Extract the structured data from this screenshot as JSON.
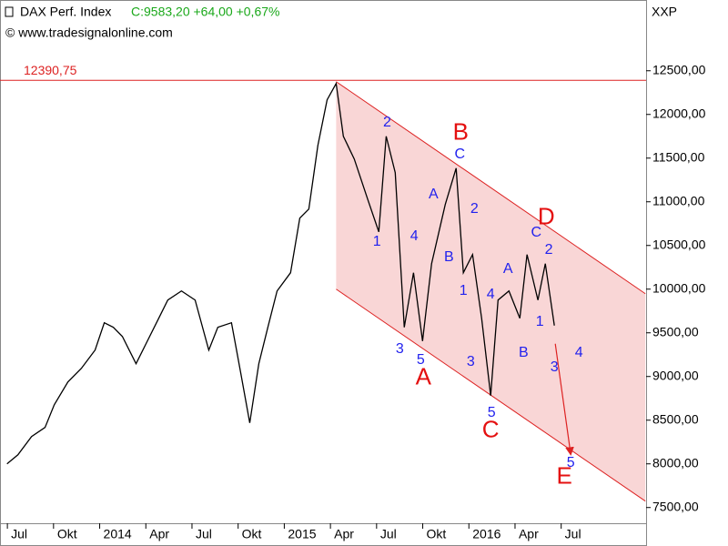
{
  "chart_data": {
    "type": "line",
    "title": "DAX Perf. Index",
    "quote": "C:9583,20 +64,00 +0,67%",
    "source": "© www.tradesignalonline.com",
    "y_axis_label": "XXP",
    "xlim": [
      2013.46,
      2016.96
    ],
    "ylim": [
      7320,
      13310
    ],
    "xticks": [
      {
        "value": 2013.5,
        "label": "Jul"
      },
      {
        "value": 2013.75,
        "label": "Okt"
      },
      2014,
      {
        "value": 2014.25,
        "label": "Apr"
      },
      {
        "value": 2014.5,
        "label": "Jul"
      },
      {
        "value": 2014.75,
        "label": "Okt"
      },
      2015,
      {
        "value": 2015.25,
        "label": "Apr"
      },
      {
        "value": 2015.5,
        "label": "Jul"
      },
      {
        "value": 2015.75,
        "label": "Okt"
      },
      2016,
      {
        "value": 2016.25,
        "label": "Apr"
      },
      {
        "value": 2016.5,
        "label": "Jul"
      }
    ],
    "yticks": [
      {
        "value": 7500,
        "label": "7500,00"
      },
      {
        "value": 8000,
        "label": "8000,00"
      },
      {
        "value": 8500,
        "label": "8500,00"
      },
      {
        "value": 9000,
        "label": "9000,00"
      },
      {
        "value": 9500,
        "label": "9500,00"
      },
      {
        "value": 10000,
        "label": "10000,00"
      },
      {
        "value": 10500,
        "label": "10500,00"
      },
      {
        "value": 11000,
        "label": "11000,00"
      },
      {
        "value": 11500,
        "label": "11500,00"
      },
      {
        "value": 12000,
        "label": "12000,00"
      },
      {
        "value": 12500,
        "label": "12500,00"
      }
    ],
    "series": [
      {
        "name": "DAX Perf. Index",
        "color": "#000000",
        "x": [
          2013.498,
          2013.557,
          2013.631,
          2013.704,
          2013.754,
          2013.828,
          2013.901,
          2013.975,
          2014.025,
          2014.074,
          2014.123,
          2014.197,
          2014.246,
          2014.32,
          2014.369,
          2014.443,
          2014.517,
          2014.591,
          2014.64,
          2014.714,
          2014.764,
          2014.813,
          2014.862,
          2014.911,
          2014.961,
          2015.034,
          2015.084,
          2015.133,
          2015.182,
          2015.232,
          2015.281,
          2015.32,
          2015.379,
          2015.453,
          2015.512,
          2015.552,
          2015.601,
          2015.65,
          2015.7,
          2015.749,
          2015.798,
          2015.872,
          2015.931,
          2015.97,
          2016.02,
          2016.069,
          2016.118,
          2016.158,
          2016.217,
          2016.276,
          2016.315,
          2016.374,
          2016.414,
          2016.463
        ],
        "values": [
          8000,
          8104,
          8313,
          8417,
          8677,
          8938,
          9094,
          9302,
          9615,
          9563,
          9458,
          9146,
          9354,
          9667,
          9875,
          9979,
          9875,
          9302,
          9563,
          9615,
          9042,
          8469,
          9146,
          9563,
          9979,
          10188,
          10813,
          10917,
          11646,
          12167,
          12354,
          11750,
          11490,
          11021,
          10656,
          11750,
          11333,
          9563,
          10188,
          9406,
          10292,
          10969,
          11385,
          10188,
          10396,
          9667,
          8781,
          9875,
          9979,
          9667,
          10396,
          9875,
          10292,
          9583
        ]
      }
    ],
    "reference_line": {
      "value": 12390.75,
      "label": "12390,75",
      "color": "#dd2222"
    },
    "channel": {
      "fill": "#f9d6d6",
      "color": "#dd2222",
      "upper": {
        "x": [
          2015.281,
          2016.956
        ],
        "values": [
          12375,
          9948
        ]
      },
      "lower": {
        "x": [
          2015.281,
          2016.956
        ],
        "values": [
          10000,
          7573
        ]
      }
    },
    "projection": {
      "x": [
        2016.468,
        2016.552
      ],
      "values": [
        9375,
        8104
      ],
      "color": "#dd2222"
    },
    "minor_wave_labels": {
      "color": "#2222ee",
      "items": [
        {
          "text": "2",
          "x": 2015.557,
          "y": 11906
        },
        {
          "text": "1",
          "x": 2015.502,
          "y": 10542
        },
        {
          "text": "4",
          "x": 2015.704,
          "y": 10604
        },
        {
          "text": "3",
          "x": 2015.626,
          "y": 9313
        },
        {
          "text": "5",
          "x": 2015.739,
          "y": 9188
        },
        {
          "text": "A",
          "x": 2015.808,
          "y": 11083
        },
        {
          "text": "B",
          "x": 2015.892,
          "y": 10365
        },
        {
          "text": "C",
          "x": 2015.951,
          "y": 11542
        },
        {
          "text": "2",
          "x": 2016.03,
          "y": 10917
        },
        {
          "text": "1",
          "x": 2015.97,
          "y": 9979
        },
        {
          "text": "4",
          "x": 2016.118,
          "y": 9938
        },
        {
          "text": "3",
          "x": 2016.01,
          "y": 9167
        },
        {
          "text": "5",
          "x": 2016.123,
          "y": 8583
        },
        {
          "text": "A",
          "x": 2016.212,
          "y": 10229
        },
        {
          "text": "B",
          "x": 2016.296,
          "y": 9271
        },
        {
          "text": "C",
          "x": 2016.365,
          "y": 10646
        },
        {
          "text": "2",
          "x": 2016.433,
          "y": 10448
        },
        {
          "text": "1",
          "x": 2016.384,
          "y": 9625
        },
        {
          "text": "3",
          "x": 2016.463,
          "y": 9104
        },
        {
          "text": "4",
          "x": 2016.596,
          "y": 9271
        },
        {
          "text": "5",
          "x": 2016.552,
          "y": 8010
        }
      ]
    },
    "major_wave_labels": {
      "color": "#e41010",
      "items": [
        {
          "text": "A",
          "x": 2015.754,
          "y": 8979
        },
        {
          "text": "B",
          "x": 2015.956,
          "y": 11781
        },
        {
          "text": "C",
          "x": 2016.118,
          "y": 8375
        },
        {
          "text": "D",
          "x": 2016.419,
          "y": 10813
        },
        {
          "text": "E",
          "x": 2016.517,
          "y": 7844
        }
      ]
    }
  }
}
